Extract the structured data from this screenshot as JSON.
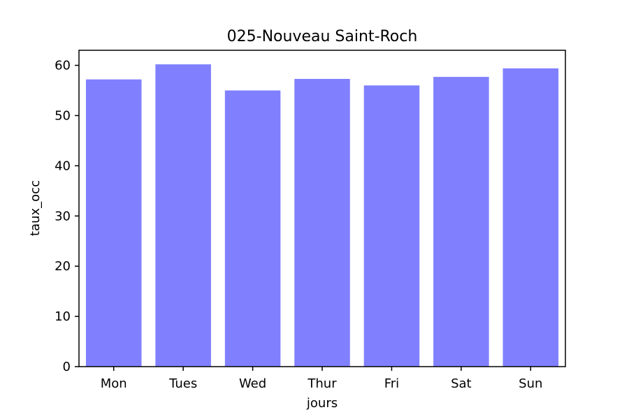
{
  "chart_data": {
    "type": "bar",
    "title": "025-Nouveau Saint-Roch",
    "xlabel": "jours",
    "ylabel": "taux_occ",
    "categories": [
      "Mon",
      "Tues",
      "Wed",
      "Thur",
      "Fri",
      "Sat",
      "Sun"
    ],
    "values": [
      57.2,
      60.2,
      55.0,
      57.3,
      56.0,
      57.7,
      59.4
    ],
    "ylim": [
      0,
      63
    ],
    "yticks": [
      0,
      10,
      20,
      30,
      40,
      50,
      60
    ],
    "bar_color": "#8080ff",
    "grid": false,
    "legend": "none"
  }
}
